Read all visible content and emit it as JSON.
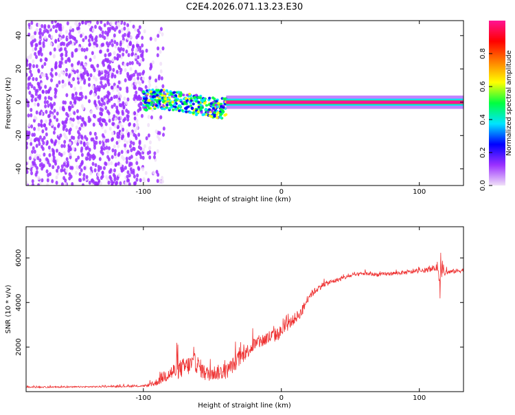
{
  "figure_title": "C2E4.2026.071.13.23.E30",
  "chart_data": [
    {
      "type": "heatmap",
      "title": "C2E4.2026.071.13.23.E30",
      "xlabel": "Height of straight line (km)",
      "ylabel": "Frequency (Hz)",
      "xlim": [
        -185,
        132
      ],
      "ylim": [
        -50,
        49
      ],
      "x_ticks": [
        -100,
        0,
        100
      ],
      "y_ticks": [
        -40,
        -20,
        0,
        20,
        40
      ],
      "x_tick_labels": [
        "-100",
        "0",
        "100"
      ],
      "y_tick_labels": [
        "-40",
        "-20",
        "0",
        "20",
        "40"
      ],
      "colorbar": {
        "label": "Normalized spectral amplitude",
        "range": [
          0,
          1
        ],
        "ticks": [
          0.0,
          0.2,
          0.4,
          0.6,
          0.8
        ],
        "tick_labels": [
          "0.0",
          "0.2",
          "0.4",
          "0.6",
          "0.8"
        ],
        "colormap": [
          "#f0e0f8",
          "#9b30ff",
          "#0000ff",
          "#00e5ff",
          "#00ff40",
          "#ffff00",
          "#ff8000",
          "#ff0000",
          "#ff1493"
        ]
      },
      "regions": [
        {
          "name": "noise",
          "x_range": [
            -185,
            -100
          ],
          "freq_range": [
            -50,
            49
          ],
          "amplitude": 0.12
        },
        {
          "name": "sparse-noise",
          "x_range": [
            -100,
            -85
          ],
          "freq_range": [
            -50,
            49
          ],
          "amplitude": 0.08
        },
        {
          "name": "transition",
          "x_range": [
            -100,
            -40
          ],
          "freq_range": [
            -6,
            6
          ],
          "amplitude": 0.3
        },
        {
          "name": "carrier",
          "x_range": [
            -40,
            132
          ],
          "freq_range": [
            -1,
            1
          ],
          "amplitude": 0.95
        }
      ],
      "carrier_frequency_profile": {
        "x": [
          -130,
          -120,
          -100,
          -90,
          -80,
          -70,
          -60,
          -50,
          -45,
          -40,
          -30,
          -20,
          -10,
          0,
          50,
          100,
          132
        ],
        "freq": [
          1,
          2,
          1,
          2,
          1,
          0,
          -2,
          -3,
          -4,
          -3,
          -1,
          0,
          0,
          0,
          0,
          0,
          0
        ]
      }
    },
    {
      "type": "line",
      "xlabel": "Height of straight line (km)",
      "ylabel": "SNR (10 * v/v)",
      "xlim": [
        -185,
        132
      ],
      "ylim": [
        0,
        7400
      ],
      "x_ticks": [
        -100,
        0,
        100
      ],
      "y_ticks": [
        2000,
        4000,
        6000
      ],
      "x_tick_labels": [
        "-100",
        "0",
        "100"
      ],
      "y_tick_labels": [
        "2000",
        "4000",
        "6000"
      ],
      "series": [
        {
          "name": "SNR",
          "color": "#ee3030",
          "x": [
            -185,
            -150,
            -120,
            -100,
            -92,
            -85,
            -78,
            -70,
            -62,
            -55,
            -48,
            -40,
            -30,
            -20,
            -10,
            -2,
            5,
            10,
            15,
            20,
            30,
            40,
            50,
            60,
            70,
            80,
            90,
            100,
            105,
            110,
            113,
            115,
            116,
            118,
            120,
            125,
            132
          ],
          "y": [
            200,
            210,
            230,
            250,
            350,
            700,
            900,
            1100,
            1300,
            800,
            850,
            900,
            1500,
            2100,
            2400,
            2600,
            3000,
            3300,
            3600,
            4300,
            4800,
            5000,
            5200,
            5300,
            5250,
            5300,
            5350,
            5400,
            5450,
            5500,
            5600,
            4500,
            5800,
            5300,
            5350,
            5400,
            5450
          ],
          "noise": [
            60,
            60,
            70,
            80,
            250,
            600,
            800,
            900,
            900,
            700,
            700,
            700,
            700,
            600,
            700,
            600,
            500,
            500,
            450,
            350,
            250,
            200,
            180,
            170,
            170,
            170,
            170,
            180,
            200,
            220,
            300,
            1000,
            1400,
            300,
            200,
            200,
            200
          ]
        }
      ]
    }
  ]
}
